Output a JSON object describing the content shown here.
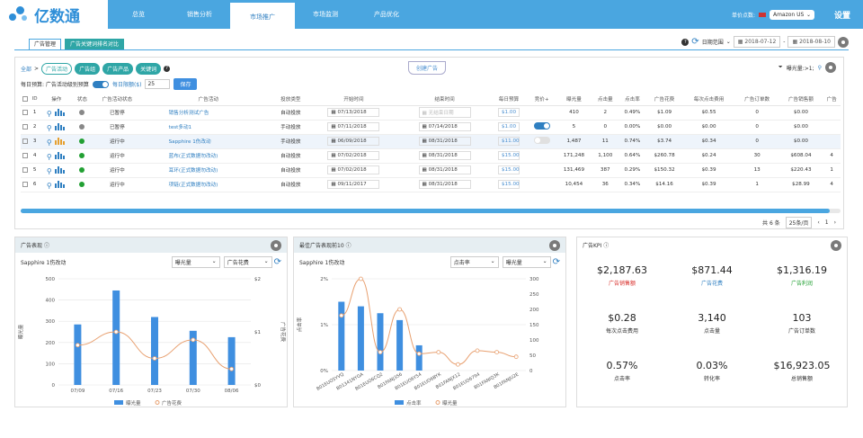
{
  "logo": {
    "text": "亿数通"
  },
  "nav": [
    "总览",
    "销售分析",
    "市场推广",
    "市场监测",
    "产品优化"
  ],
  "nav_active": 2,
  "topright": {
    "label": "单价点数:",
    "store": "Amazon US",
    "settings": "设置"
  },
  "subtabs": [
    "广告管理",
    "广告关键词排名对比"
  ],
  "date": {
    "label": "日期范围",
    "from": "2018-07-12",
    "to": "2018-08-10"
  },
  "filters": {
    "all": "全部",
    "chips": [
      "广告活动",
      "广告组",
      "广告产品",
      "关键词"
    ]
  },
  "new_ad": "创建广告",
  "exposure": "曝光量:>1;",
  "budget": {
    "label": "每日预算: 广告活动级别预算",
    "limit_label": "每日限额($)",
    "value": "25",
    "save": "保存"
  },
  "table": {
    "headers": [
      "ID",
      "操作",
      "状态",
      "广告活动状态",
      "广告活动",
      "投放类型",
      "开始时间",
      "结束时间",
      "每日预算",
      "竞价+",
      "曝光量",
      "点击量",
      "点击率",
      "广告花费",
      "每次点击费用",
      "广告订单数",
      "广告销售额",
      "广告"
    ],
    "rows": [
      {
        "id": "1",
        "status_color": "#888888",
        "state": "已暂停",
        "name": "销售分析测试广告",
        "type": "自动投放",
        "start": "07/13/2018",
        "end": "无结束日期",
        "budget": "$1.00",
        "toggle": "",
        "impr": "410",
        "clicks": "2",
        "ctr": "0.49%",
        "spend": "$1.09",
        "cpc": "$0.55",
        "orders": "0",
        "sales": "$0.00",
        "last": ""
      },
      {
        "id": "2",
        "status_color": "#888888",
        "state": "已暂停",
        "name": "test多动1",
        "type": "手动投放",
        "start": "07/11/2018",
        "end": "07/14/2018",
        "budget": "$1.00",
        "toggle": "on",
        "impr": "5",
        "clicks": "0",
        "ctr": "0.00%",
        "spend": "$0.00",
        "cpc": "$0.00",
        "orders": "0",
        "sales": "$0.00",
        "last": ""
      },
      {
        "id": "3",
        "status_color": "#22a033",
        "state": "运行中",
        "name": "Sapphire 1伤改动",
        "type": "手动投放",
        "start": "06/09/2018",
        "end": "08/31/2018",
        "budget": "$11.00",
        "toggle": "off",
        "impr": "1,487",
        "clicks": "11",
        "ctr": "0.74%",
        "spend": "$3.74",
        "cpc": "$0.34",
        "orders": "0",
        "sales": "$0.00",
        "last": ""
      },
      {
        "id": "4",
        "status_color": "#22a033",
        "state": "运行中",
        "name": "蓝布(正式数据勿改动)",
        "type": "自动投放",
        "start": "07/02/2018",
        "end": "08/31/2018",
        "budget": "$15.00",
        "toggle": "",
        "impr": "171,248",
        "clicks": "1,100",
        "ctr": "0.64%",
        "spend": "$260.78",
        "cpc": "$0.24",
        "orders": "30",
        "sales": "$608.04",
        "last": "4"
      },
      {
        "id": "5",
        "status_color": "#22a033",
        "state": "运行中",
        "name": "耳环(正式数据勿改动)",
        "type": "自动投放",
        "start": "07/02/2018",
        "end": "08/31/2018",
        "budget": "$15.00",
        "toggle": "",
        "impr": "131,469",
        "clicks": "387",
        "ctr": "0.29%",
        "spend": "$150.32",
        "cpc": "$0.39",
        "orders": "13",
        "sales": "$220.43",
        "last": "1"
      },
      {
        "id": "6",
        "status_color": "#22a033",
        "state": "运行中",
        "name": "项链(正式数据勿改动)",
        "type": "自动投放",
        "start": "09/11/2017",
        "end": "08/31/2018",
        "budget": "$15.00",
        "toggle": "",
        "impr": "10,454",
        "clicks": "36",
        "ctr": "0.34%",
        "spend": "$14.16",
        "cpc": "$0.39",
        "orders": "1",
        "sales": "$28.99",
        "last": "4"
      }
    ]
  },
  "pager": {
    "total": "共 6 条",
    "size": "25条/页",
    "page": "1"
  },
  "panel1": {
    "title": "广告表现",
    "campaign": "Sapphire 1伤改动",
    "sel1": "曝光量",
    "sel2": "广告花费"
  },
  "panel2": {
    "title": "最佳广告表现前10",
    "campaign": "Sapphire 1伤改动",
    "sel1": "点击率",
    "sel2": "曝光量"
  },
  "kpi": {
    "title": "广告KPI",
    "items": [
      {
        "value": "$2,187.63",
        "label": "广告销售额",
        "color": "#d9302c"
      },
      {
        "value": "$871.44",
        "label": "广告花费",
        "color": "#2f7fc1"
      },
      {
        "value": "$1,316.19",
        "label": "广告利润",
        "color": "#22a033"
      },
      {
        "value": "$0.28",
        "label": "每次点击费用",
        "color": "#333333"
      },
      {
        "value": "3,140",
        "label": "点击量",
        "color": "#333333"
      },
      {
        "value": "103",
        "label": "广告订单数",
        "color": "#333333"
      },
      {
        "value": "0.57%",
        "label": "点击率",
        "color": "#333333"
      },
      {
        "value": "0.03%",
        "label": "转化率",
        "color": "#333333"
      },
      {
        "value": "$16,923.05",
        "label": "总销售额",
        "color": "#333333"
      }
    ]
  },
  "chart_data": [
    {
      "type": "bar",
      "title": "",
      "categories": [
        "07/09",
        "07/16",
        "07/23",
        "07/30",
        "08/06"
      ],
      "series": [
        {
          "name": "曝光量",
          "type": "bar",
          "values": [
            285,
            445,
            320,
            255,
            225
          ]
        },
        {
          "name": "广告花费",
          "type": "line",
          "values": [
            0.75,
            1.0,
            0.5,
            0.85,
            0.3
          ]
        }
      ],
      "ylabel": "曝光量",
      "y2label": "广告花费",
      "ylim": [
        0,
        500
      ],
      "y2lim": [
        0,
        2
      ],
      "yticks": [
        "0",
        "100",
        "200",
        "300",
        "400",
        "500"
      ],
      "y2ticks": [
        "$0",
        "$1",
        "$2"
      ]
    },
    {
      "type": "bar",
      "title": "",
      "categories": [
        "B01EUO5YVQ",
        "B01341NYGA",
        "B01EUO6CQ2",
        "B01FANJ3S6",
        "B01EUO6Y54",
        "B01EUO6BYK",
        "B01FANJX12",
        "B01EUO6794",
        "B01FANIQ3K",
        "B01FANJU2E"
      ],
      "series": [
        {
          "name": "点击率",
          "type": "bar",
          "values": [
            1.5,
            1.4,
            1.25,
            1.1,
            0.55,
            0,
            0,
            0,
            0,
            0
          ]
        },
        {
          "name": "曝光量",
          "type": "line",
          "values": [
            180,
            300,
            60,
            200,
            55,
            60,
            20,
            65,
            60,
            45
          ]
        }
      ],
      "ylabel": "点击率",
      "ylim": [
        0,
        2
      ],
      "y2lim": [
        0,
        300
      ],
      "yticks": [
        "0%",
        "1%",
        "2%"
      ],
      "y2ticks": [
        "0",
        "50",
        "100",
        "150",
        "200",
        "250",
        "300"
      ]
    }
  ]
}
